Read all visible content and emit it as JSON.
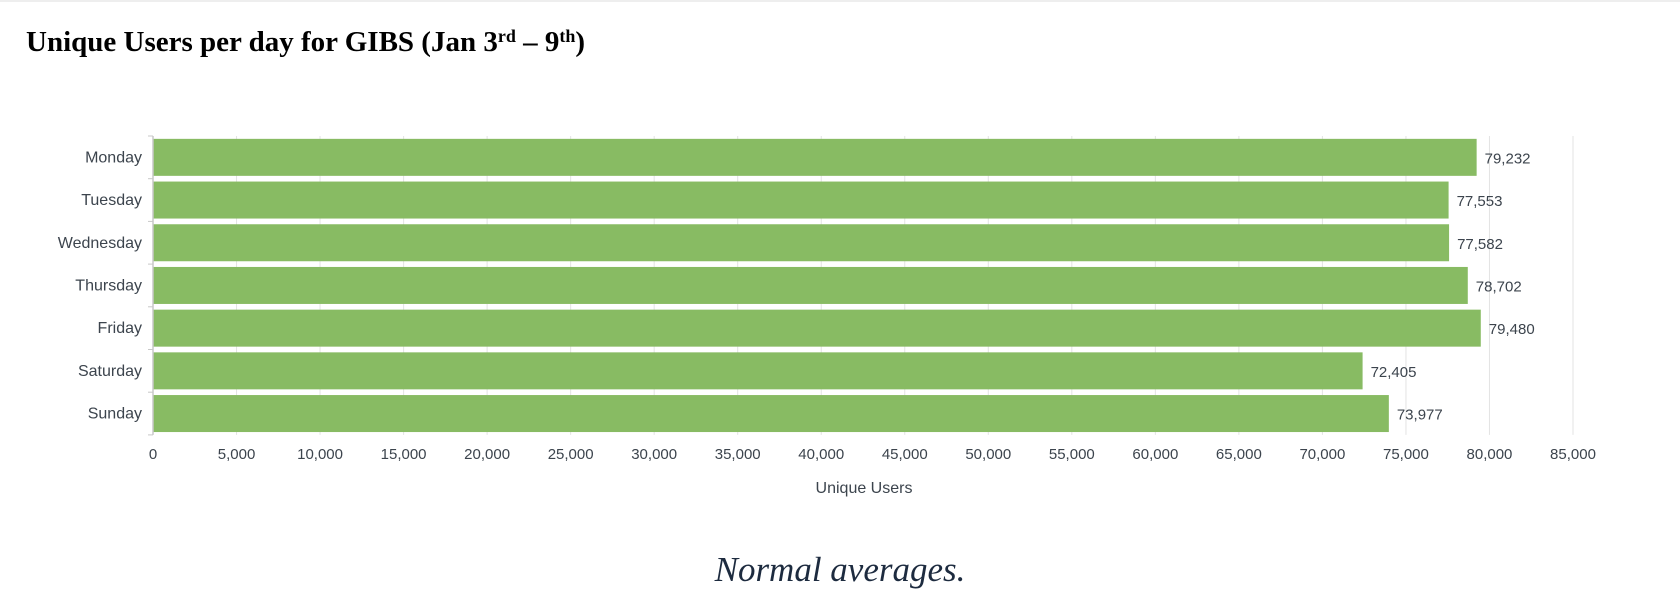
{
  "page": {
    "title_main": "Unique Users per day for GIBS (Jan 3",
    "title_sup1": "rd",
    "title_mid": " – 9",
    "title_sup2": "th",
    "title_end": ")",
    "caption": "Normal averages."
  },
  "chart_data": {
    "type": "bar",
    "orientation": "horizontal",
    "categories": [
      "Monday",
      "Tuesday",
      "Wednesday",
      "Thursday",
      "Friday",
      "Saturday",
      "Sunday"
    ],
    "values": [
      79232,
      77553,
      77582,
      78702,
      79480,
      72405,
      73977
    ],
    "value_labels": [
      "79,232",
      "77,553",
      "77,582",
      "78,702",
      "79,480",
      "72,405",
      "73,977"
    ],
    "xlabel": "Unique Users",
    "ylabel": "",
    "xlim": [
      0,
      85000
    ],
    "xticks": [
      0,
      5000,
      10000,
      15000,
      20000,
      25000,
      30000,
      35000,
      40000,
      45000,
      50000,
      55000,
      60000,
      65000,
      70000,
      75000,
      80000,
      85000
    ],
    "xtick_labels": [
      "0",
      "5,000",
      "10,000",
      "15,000",
      "20,000",
      "25,000",
      "30,000",
      "35,000",
      "40,000",
      "45,000",
      "50,000",
      "55,000",
      "60,000",
      "65,000",
      "70,000",
      "75,000",
      "80,000",
      "85,000"
    ],
    "grid": true,
    "legend": "none",
    "colors": {
      "bar": "#88bb63",
      "grid": "#e3e3e3",
      "axis": "#c8c8c8",
      "text": "#3c444d"
    }
  }
}
